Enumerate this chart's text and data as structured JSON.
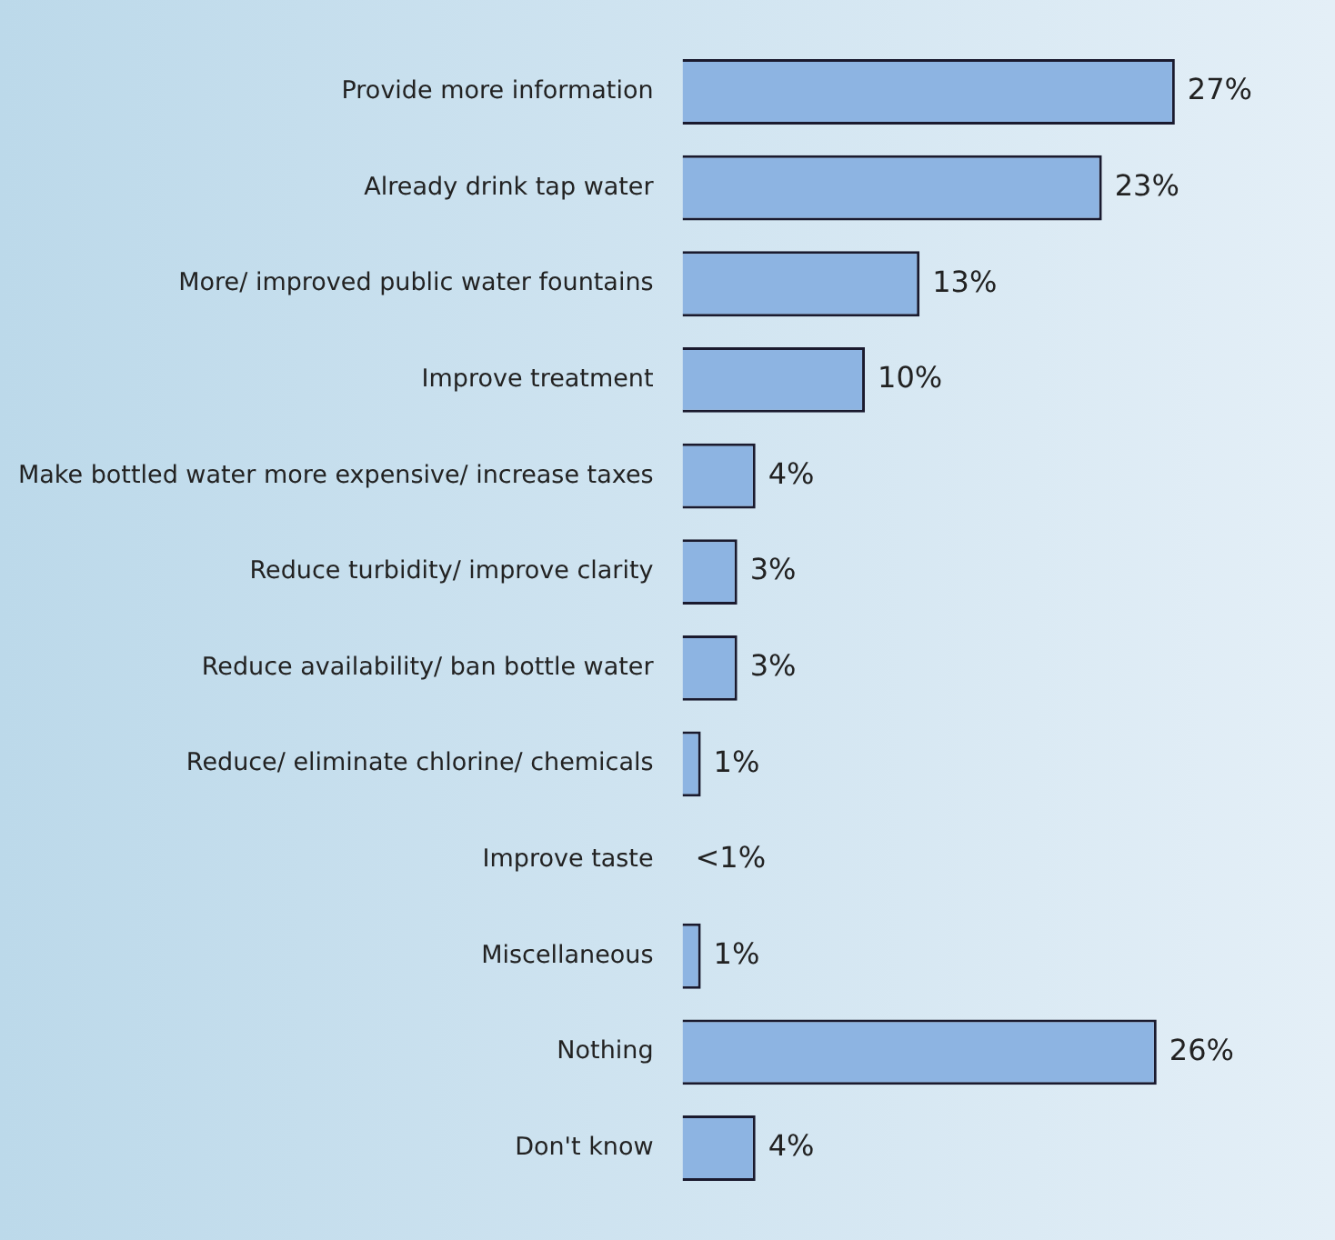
{
  "chart_data": {
    "type": "bar",
    "orientation": "horizontal",
    "categories": [
      "Provide more information",
      "Already drink tap water",
      "More/ improved public water fountains",
      "Improve treatment",
      "Make bottled water more expensive/ increase taxes",
      "Reduce turbidity/ improve clarity",
      "Reduce availability/ ban bottle water",
      "Reduce/ eliminate chlorine/ chemicals",
      "Improve taste",
      "Miscellaneous",
      "Nothing",
      "Don't know"
    ],
    "values": [
      27,
      23,
      13,
      10,
      4,
      3,
      3,
      1,
      0,
      1,
      26,
      4
    ],
    "value_labels": [
      "27%",
      "23%",
      "13%",
      "10%",
      "4%",
      "3%",
      "3%",
      "1%",
      "<1%",
      "1%",
      "26%",
      "4%"
    ],
    "color": "#8db4e2",
    "tick_labels": "y",
    "legend": false
  }
}
